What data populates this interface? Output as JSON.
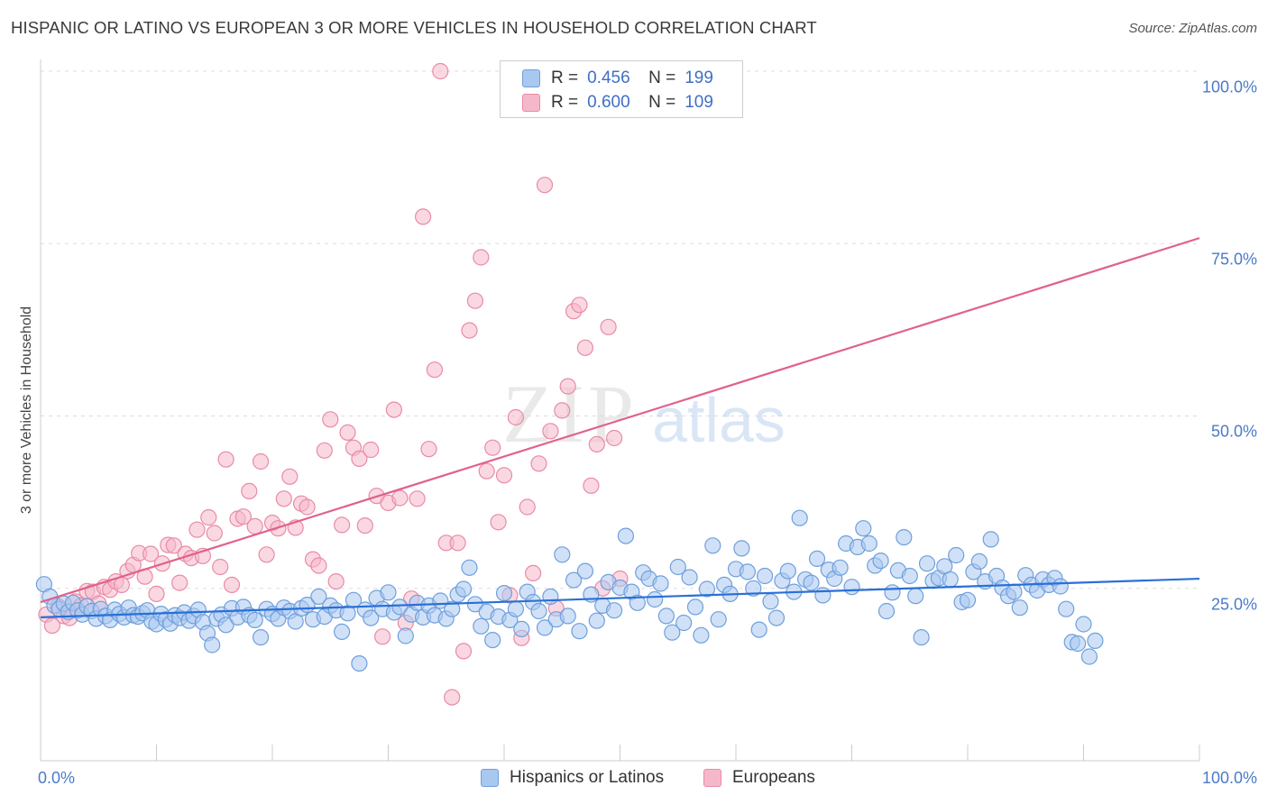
{
  "header": {
    "title": "HISPANIC OR LATINO VS EUROPEAN 3 OR MORE VEHICLES IN HOUSEHOLD CORRELATION CHART",
    "source": "Source: ZipAtlas.com"
  },
  "watermark": {
    "zip": "ZIP",
    "atlas": "atlas"
  },
  "legend": {
    "r_label": "R =",
    "n_label": "N =",
    "items": [
      {
        "r": "0.456",
        "n": "199"
      },
      {
        "r": "0.600",
        "n": "109"
      }
    ]
  },
  "colors": {
    "blue_fill": "#a9c8f0",
    "blue_stroke": "#6f9fdc",
    "blue_line": "#2a6fd6",
    "pink_fill": "#f5b8cb",
    "pink_stroke": "#e98aa6",
    "pink_line": "#e0628b",
    "tick_text": "#4a7bc8",
    "grid": "#dddddd"
  },
  "chart_data": {
    "type": "scatter",
    "title": "HISPANIC OR LATINO VS EUROPEAN 3 OR MORE VEHICLES IN HOUSEHOLD CORRELATION CHART",
    "xlabel": "",
    "ylabel": "3 or more Vehicles in Household",
    "x_tick_labels": [
      "0.0%",
      "100.0%"
    ],
    "y_tick_labels": [
      "25.0%",
      "50.0%",
      "75.0%",
      "100.0%"
    ],
    "xlim": [
      0,
      100
    ],
    "ylim": [
      0,
      100
    ],
    "grid": true,
    "legend_position": "top-center",
    "series": [
      {
        "name": "Hispanics or Latinos",
        "r": 0.456,
        "n": 199,
        "trend": [
          [
            0,
            20.8
          ],
          [
            100,
            26.4
          ]
        ],
        "points": [
          [
            0.3,
            25.6
          ],
          [
            0.8,
            23.8
          ],
          [
            1.2,
            22.5
          ],
          [
            1.6,
            22.0
          ],
          [
            2.0,
            22.8
          ],
          [
            2.4,
            21.6
          ],
          [
            2.8,
            22.9
          ],
          [
            3.2,
            21.8
          ],
          [
            3.6,
            21.2
          ],
          [
            4.0,
            22.4
          ],
          [
            4.4,
            21.7
          ],
          [
            4.8,
            20.6
          ],
          [
            5.2,
            22.0
          ],
          [
            5.6,
            21.0
          ],
          [
            6.0,
            20.4
          ],
          [
            6.4,
            21.9
          ],
          [
            6.8,
            21.3
          ],
          [
            7.2,
            20.8
          ],
          [
            7.6,
            22.2
          ],
          [
            8.0,
            21.1
          ],
          [
            8.4,
            20.9
          ],
          [
            8.8,
            21.4
          ],
          [
            9.2,
            21.8
          ],
          [
            9.6,
            20.2
          ],
          [
            10.0,
            19.8
          ],
          [
            10.4,
            21.3
          ],
          [
            10.8,
            20.5
          ],
          [
            11.2,
            19.9
          ],
          [
            11.6,
            21.1
          ],
          [
            12.0,
            20.7
          ],
          [
            12.4,
            21.5
          ],
          [
            12.8,
            20.3
          ],
          [
            13.2,
            21.0
          ],
          [
            13.6,
            21.9
          ],
          [
            14.0,
            20.1
          ],
          [
            14.4,
            18.5
          ],
          [
            14.8,
            16.8
          ],
          [
            15.2,
            20.6
          ],
          [
            15.6,
            21.2
          ],
          [
            16.0,
            19.7
          ],
          [
            16.5,
            22.1
          ],
          [
            17.0,
            20.8
          ],
          [
            17.5,
            22.3
          ],
          [
            18.0,
            21.1
          ],
          [
            18.5,
            20.4
          ],
          [
            19.0,
            17.9
          ],
          [
            19.5,
            22.0
          ],
          [
            20.0,
            21.3
          ],
          [
            20.5,
            20.6
          ],
          [
            21.0,
            22.2
          ],
          [
            21.5,
            21.7
          ],
          [
            22.0,
            20.2
          ],
          [
            22.5,
            22.1
          ],
          [
            23.0,
            22.6
          ],
          [
            23.5,
            20.5
          ],
          [
            24.0,
            23.8
          ],
          [
            24.5,
            20.9
          ],
          [
            25.0,
            22.5
          ],
          [
            25.5,
            21.8
          ],
          [
            26.0,
            18.7
          ],
          [
            26.5,
            21.4
          ],
          [
            27.0,
            23.3
          ],
          [
            27.5,
            14.1
          ],
          [
            28.0,
            21.9
          ],
          [
            28.5,
            20.7
          ],
          [
            29.0,
            23.6
          ],
          [
            29.5,
            22.0
          ],
          [
            30.0,
            24.4
          ],
          [
            30.5,
            21.5
          ],
          [
            31.0,
            22.3
          ],
          [
            31.5,
            18.1
          ],
          [
            32.0,
            21.2
          ],
          [
            32.5,
            22.9
          ],
          [
            33.0,
            20.8
          ],
          [
            33.5,
            22.5
          ],
          [
            34.0,
            21.1
          ],
          [
            34.5,
            23.2
          ],
          [
            35.0,
            20.6
          ],
          [
            35.5,
            22.0
          ],
          [
            36.0,
            24.1
          ],
          [
            36.5,
            24.9
          ],
          [
            37.0,
            28.0
          ],
          [
            37.5,
            22.7
          ],
          [
            38.0,
            19.5
          ],
          [
            38.5,
            21.6
          ],
          [
            39.0,
            17.5
          ],
          [
            39.5,
            20.9
          ],
          [
            40.0,
            24.3
          ],
          [
            40.5,
            20.4
          ],
          [
            41.0,
            22.0
          ],
          [
            41.5,
            19.1
          ],
          [
            42.0,
            24.5
          ],
          [
            42.5,
            23.0
          ],
          [
            43.0,
            21.7
          ],
          [
            43.5,
            19.3
          ],
          [
            44.0,
            23.8
          ],
          [
            44.5,
            20.5
          ],
          [
            45.0,
            29.9
          ],
          [
            45.5,
            21.0
          ],
          [
            46.0,
            26.2
          ],
          [
            46.5,
            18.8
          ],
          [
            47.0,
            27.5
          ],
          [
            47.5,
            24.1
          ],
          [
            48.0,
            20.3
          ],
          [
            48.5,
            22.5
          ],
          [
            49.0,
            25.9
          ],
          [
            49.5,
            21.8
          ],
          [
            50.0,
            25.1
          ],
          [
            50.5,
            32.6
          ],
          [
            51.0,
            24.5
          ],
          [
            51.5,
            22.9
          ],
          [
            52.0,
            27.3
          ],
          [
            52.5,
            26.4
          ],
          [
            53.0,
            23.4
          ],
          [
            53.5,
            25.7
          ],
          [
            54.0,
            21.0
          ],
          [
            54.5,
            18.6
          ],
          [
            55.0,
            28.1
          ],
          [
            55.5,
            20.0
          ],
          [
            56.0,
            26.6
          ],
          [
            56.5,
            22.3
          ],
          [
            57.0,
            18.2
          ],
          [
            57.5,
            24.9
          ],
          [
            58.0,
            31.2
          ],
          [
            58.5,
            20.5
          ],
          [
            59.0,
            25.5
          ],
          [
            59.5,
            24.2
          ],
          [
            60.0,
            27.8
          ],
          [
            60.5,
            30.8
          ],
          [
            61.0,
            27.4
          ],
          [
            61.5,
            25.0
          ],
          [
            62.0,
            19.0
          ],
          [
            62.5,
            26.8
          ],
          [
            63.0,
            23.1
          ],
          [
            63.5,
            20.7
          ],
          [
            64.0,
            26.1
          ],
          [
            64.5,
            27.5
          ],
          [
            65.0,
            24.5
          ],
          [
            65.5,
            35.2
          ],
          [
            66.0,
            26.3
          ],
          [
            66.5,
            25.8
          ],
          [
            67.0,
            29.3
          ],
          [
            67.5,
            24.0
          ],
          [
            68.0,
            27.7
          ],
          [
            68.5,
            26.4
          ],
          [
            69.0,
            28.0
          ],
          [
            69.5,
            31.5
          ],
          [
            70.0,
            25.2
          ],
          [
            70.5,
            31.0
          ],
          [
            71.0,
            33.7
          ],
          [
            71.5,
            31.5
          ],
          [
            72.0,
            28.3
          ],
          [
            72.5,
            29.0
          ],
          [
            73.0,
            21.7
          ],
          [
            73.5,
            24.4
          ],
          [
            74.0,
            27.6
          ],
          [
            74.5,
            32.4
          ],
          [
            75.0,
            26.8
          ],
          [
            75.5,
            23.9
          ],
          [
            76.0,
            17.9
          ],
          [
            76.5,
            28.6
          ],
          [
            77.0,
            26.1
          ],
          [
            77.5,
            26.5
          ],
          [
            78.0,
            28.2
          ],
          [
            78.5,
            26.3
          ],
          [
            79.0,
            29.8
          ],
          [
            79.5,
            23.0
          ],
          [
            80.0,
            23.3
          ],
          [
            80.5,
            27.4
          ],
          [
            81.0,
            28.9
          ],
          [
            81.5,
            26.0
          ],
          [
            82.0,
            32.1
          ],
          [
            82.5,
            26.8
          ],
          [
            83.0,
            25.1
          ],
          [
            83.5,
            23.9
          ],
          [
            84.0,
            24.5
          ],
          [
            84.5,
            22.2
          ],
          [
            85.0,
            26.9
          ],
          [
            85.5,
            25.5
          ],
          [
            86.0,
            24.7
          ],
          [
            86.5,
            26.3
          ],
          [
            87.0,
            25.5
          ],
          [
            87.5,
            26.5
          ],
          [
            88.0,
            25.3
          ],
          [
            88.5,
            22.0
          ],
          [
            89.0,
            17.2
          ],
          [
            89.5,
            17.0
          ],
          [
            90.0,
            19.8
          ],
          [
            90.5,
            15.1
          ],
          [
            91.0,
            17.4
          ]
        ]
      },
      {
        "name": "Europeans",
        "r": 0.6,
        "n": 109,
        "trend": [
          [
            0,
            23.0
          ],
          [
            100,
            75.8
          ]
        ],
        "points": [
          [
            0.5,
            21.2
          ],
          [
            1.0,
            19.6
          ],
          [
            1.5,
            22.4
          ],
          [
            2.0,
            21.0
          ],
          [
            2.5,
            20.7
          ],
          [
            3.0,
            23.1
          ],
          [
            3.5,
            22.5
          ],
          [
            4.0,
            24.6
          ],
          [
            4.5,
            24.5
          ],
          [
            5.0,
            22.8
          ],
          [
            5.5,
            25.2
          ],
          [
            6.0,
            24.8
          ],
          [
            6.5,
            26.0
          ],
          [
            7.0,
            25.5
          ],
          [
            7.5,
            27.5
          ],
          [
            8.0,
            28.4
          ],
          [
            8.5,
            30.1
          ],
          [
            9.0,
            26.7
          ],
          [
            9.5,
            30.0
          ],
          [
            10.0,
            24.2
          ],
          [
            10.5,
            28.6
          ],
          [
            11.0,
            31.3
          ],
          [
            11.5,
            31.2
          ],
          [
            12.0,
            25.8
          ],
          [
            12.5,
            30.0
          ],
          [
            13.0,
            29.4
          ],
          [
            13.5,
            33.5
          ],
          [
            14.0,
            29.7
          ],
          [
            14.5,
            35.3
          ],
          [
            15.0,
            33.0
          ],
          [
            15.5,
            28.1
          ],
          [
            16.0,
            43.7
          ],
          [
            16.5,
            25.5
          ],
          [
            17.0,
            35.1
          ],
          [
            17.5,
            35.4
          ],
          [
            18.0,
            39.1
          ],
          [
            18.5,
            34.0
          ],
          [
            19.0,
            43.4
          ],
          [
            19.5,
            29.9
          ],
          [
            20.0,
            34.5
          ],
          [
            20.5,
            33.7
          ],
          [
            21.0,
            38.0
          ],
          [
            21.5,
            41.2
          ],
          [
            22.0,
            33.8
          ],
          [
            22.5,
            37.3
          ],
          [
            23.0,
            36.8
          ],
          [
            23.5,
            29.2
          ],
          [
            24.0,
            28.3
          ],
          [
            24.5,
            45.0
          ],
          [
            25.0,
            49.5
          ],
          [
            25.5,
            26.0
          ],
          [
            26.0,
            34.2
          ],
          [
            26.5,
            47.6
          ],
          [
            27.0,
            45.4
          ],
          [
            27.5,
            43.8
          ],
          [
            28.0,
            34.1
          ],
          [
            28.5,
            45.1
          ],
          [
            29.0,
            38.4
          ],
          [
            29.5,
            18.0
          ],
          [
            30.0,
            37.4
          ],
          [
            30.5,
            50.9
          ],
          [
            31.0,
            38.1
          ],
          [
            31.5,
            20.0
          ],
          [
            32.0,
            23.5
          ],
          [
            32.5,
            38.0
          ],
          [
            33.0,
            78.9
          ],
          [
            33.5,
            45.2
          ],
          [
            34.0,
            56.7
          ],
          [
            34.5,
            100.0
          ],
          [
            35.0,
            31.6
          ],
          [
            35.5,
            9.2
          ],
          [
            36.0,
            31.6
          ],
          [
            36.5,
            15.9
          ],
          [
            37.0,
            62.4
          ],
          [
            37.5,
            66.7
          ],
          [
            38.0,
            73.0
          ],
          [
            38.5,
            42.0
          ],
          [
            39.0,
            45.4
          ],
          [
            39.5,
            34.6
          ],
          [
            40.0,
            41.4
          ],
          [
            40.5,
            24.0
          ],
          [
            41.0,
            49.8
          ],
          [
            41.5,
            17.8
          ],
          [
            42.0,
            36.8
          ],
          [
            42.5,
            27.2
          ],
          [
            43.0,
            43.1
          ],
          [
            43.5,
            83.5
          ],
          [
            44.0,
            47.8
          ],
          [
            44.5,
            22.1
          ],
          [
            45.0,
            50.8
          ],
          [
            45.5,
            54.3
          ],
          [
            46.0,
            65.2
          ],
          [
            46.5,
            66.1
          ],
          [
            47.0,
            59.9
          ],
          [
            47.5,
            39.9
          ],
          [
            48.0,
            45.9
          ],
          [
            48.5,
            25.0
          ],
          [
            49.0,
            62.9
          ],
          [
            49.5,
            46.8
          ],
          [
            50.0,
            26.4
          ],
          [
            50.5,
            100.0
          ],
          [
            51.0,
            100.0
          ],
          [
            51.5,
            100.0
          ]
        ]
      }
    ]
  },
  "bottom_legend": [
    "Hispanics or Latinos",
    "Europeans"
  ]
}
